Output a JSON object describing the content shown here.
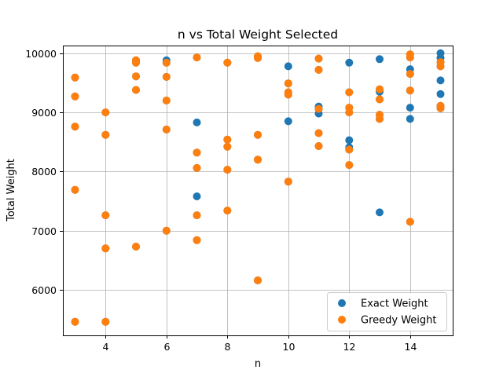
{
  "chart_data": {
    "type": "scatter",
    "title": "n vs Total Weight Selected",
    "xlabel": "n",
    "ylabel": "Total Weight",
    "xlim": [
      2.6,
      15.4
    ],
    "ylim": [
      5230,
      10130
    ],
    "xticks": [
      4,
      6,
      8,
      10,
      12,
      14
    ],
    "yticks": [
      6000,
      7000,
      8000,
      9000,
      10000
    ],
    "grid": true,
    "legend_position": "lower-right",
    "series": [
      {
        "name": "Exact Weight",
        "color": "#1f77b4",
        "points": [
          [
            3,
            5460
          ],
          [
            3,
            7690
          ],
          [
            3,
            8760
          ],
          [
            3,
            9270
          ],
          [
            3,
            9590
          ],
          [
            4,
            5460
          ],
          [
            4,
            6700
          ],
          [
            4,
            7260
          ],
          [
            4,
            8620
          ],
          [
            4,
            9000
          ],
          [
            5,
            6730
          ],
          [
            5,
            9380
          ],
          [
            5,
            9610
          ],
          [
            5,
            9840
          ],
          [
            5,
            9880
          ],
          [
            6,
            7000
          ],
          [
            6,
            8710
          ],
          [
            6,
            9200
          ],
          [
            6,
            9600
          ],
          [
            6,
            9840
          ],
          [
            6,
            9880
          ],
          [
            7,
            6840
          ],
          [
            7,
            7260
          ],
          [
            7,
            7580
          ],
          [
            7,
            8060
          ],
          [
            7,
            8320
          ],
          [
            7,
            8830
          ],
          [
            7,
            9930
          ],
          [
            8,
            7340
          ],
          [
            8,
            8030
          ],
          [
            8,
            8420
          ],
          [
            8,
            8540
          ],
          [
            8,
            9840
          ],
          [
            9,
            6160
          ],
          [
            9,
            8200
          ],
          [
            9,
            8620
          ],
          [
            9,
            9920
          ],
          [
            9,
            9950
          ],
          [
            10,
            7830
          ],
          [
            10,
            8850
          ],
          [
            10,
            9300
          ],
          [
            10,
            9340
          ],
          [
            10,
            9490
          ],
          [
            10,
            9780
          ],
          [
            11,
            8430
          ],
          [
            11,
            8650
          ],
          [
            11,
            8980
          ],
          [
            11,
            9060
          ],
          [
            11,
            9100
          ],
          [
            11,
            9720
          ],
          [
            11,
            9910
          ],
          [
            12,
            8110
          ],
          [
            12,
            8370
          ],
          [
            12,
            8410
          ],
          [
            12,
            8530
          ],
          [
            12,
            9000
          ],
          [
            12,
            9080
          ],
          [
            12,
            9340
          ],
          [
            12,
            9840
          ],
          [
            13,
            7310
          ],
          [
            13,
            8890
          ],
          [
            13,
            8960
          ],
          [
            13,
            9220
          ],
          [
            13,
            9350
          ],
          [
            13,
            9390
          ],
          [
            13,
            9900
          ],
          [
            14,
            7150
          ],
          [
            14,
            8890
          ],
          [
            14,
            9080
          ],
          [
            14,
            9370
          ],
          [
            14,
            9650
          ],
          [
            14,
            9730
          ],
          [
            14,
            9930
          ],
          [
            14,
            9980
          ],
          [
            15,
            9070
          ],
          [
            15,
            9110
          ],
          [
            15,
            9310
          ],
          [
            15,
            9540
          ],
          [
            15,
            9780
          ],
          [
            15,
            9850
          ],
          [
            15,
            9920
          ],
          [
            15,
            10000
          ]
        ]
      },
      {
        "name": "Greedy Weight",
        "color": "#ff7f0e",
        "points": [
          [
            3,
            5460
          ],
          [
            3,
            7690
          ],
          [
            3,
            8760
          ],
          [
            3,
            9270
          ],
          [
            3,
            9590
          ],
          [
            4,
            5460
          ],
          [
            4,
            6700
          ],
          [
            4,
            7260
          ],
          [
            4,
            8620
          ],
          [
            4,
            9000
          ],
          [
            5,
            6730
          ],
          [
            5,
            9380
          ],
          [
            5,
            9610
          ],
          [
            5,
            9840
          ],
          [
            5,
            9880
          ],
          [
            6,
            7000
          ],
          [
            6,
            8710
          ],
          [
            6,
            9200
          ],
          [
            6,
            9600
          ],
          [
            6,
            9840
          ],
          [
            7,
            6840
          ],
          [
            7,
            7260
          ],
          [
            7,
            8060
          ],
          [
            7,
            8320
          ],
          [
            7,
            9930
          ],
          [
            8,
            7340
          ],
          [
            8,
            8030
          ],
          [
            8,
            8420
          ],
          [
            8,
            8540
          ],
          [
            8,
            9840
          ],
          [
            9,
            6160
          ],
          [
            9,
            8200
          ],
          [
            9,
            8620
          ],
          [
            9,
            9920
          ],
          [
            9,
            9950
          ],
          [
            10,
            7830
          ],
          [
            10,
            9300
          ],
          [
            10,
            9340
          ],
          [
            10,
            9490
          ],
          [
            11,
            8430
          ],
          [
            11,
            8650
          ],
          [
            11,
            9060
          ],
          [
            11,
            9720
          ],
          [
            11,
            9910
          ],
          [
            12,
            8110
          ],
          [
            12,
            8370
          ],
          [
            12,
            9000
          ],
          [
            12,
            9080
          ],
          [
            12,
            9340
          ],
          [
            13,
            8890
          ],
          [
            13,
            8960
          ],
          [
            13,
            9220
          ],
          [
            13,
            9390
          ],
          [
            14,
            7150
          ],
          [
            14,
            9370
          ],
          [
            14,
            9650
          ],
          [
            14,
            9930
          ],
          [
            14,
            9980
          ],
          [
            15,
            9070
          ],
          [
            15,
            9110
          ],
          [
            15,
            9780
          ],
          [
            15,
            9850
          ]
        ]
      }
    ]
  }
}
